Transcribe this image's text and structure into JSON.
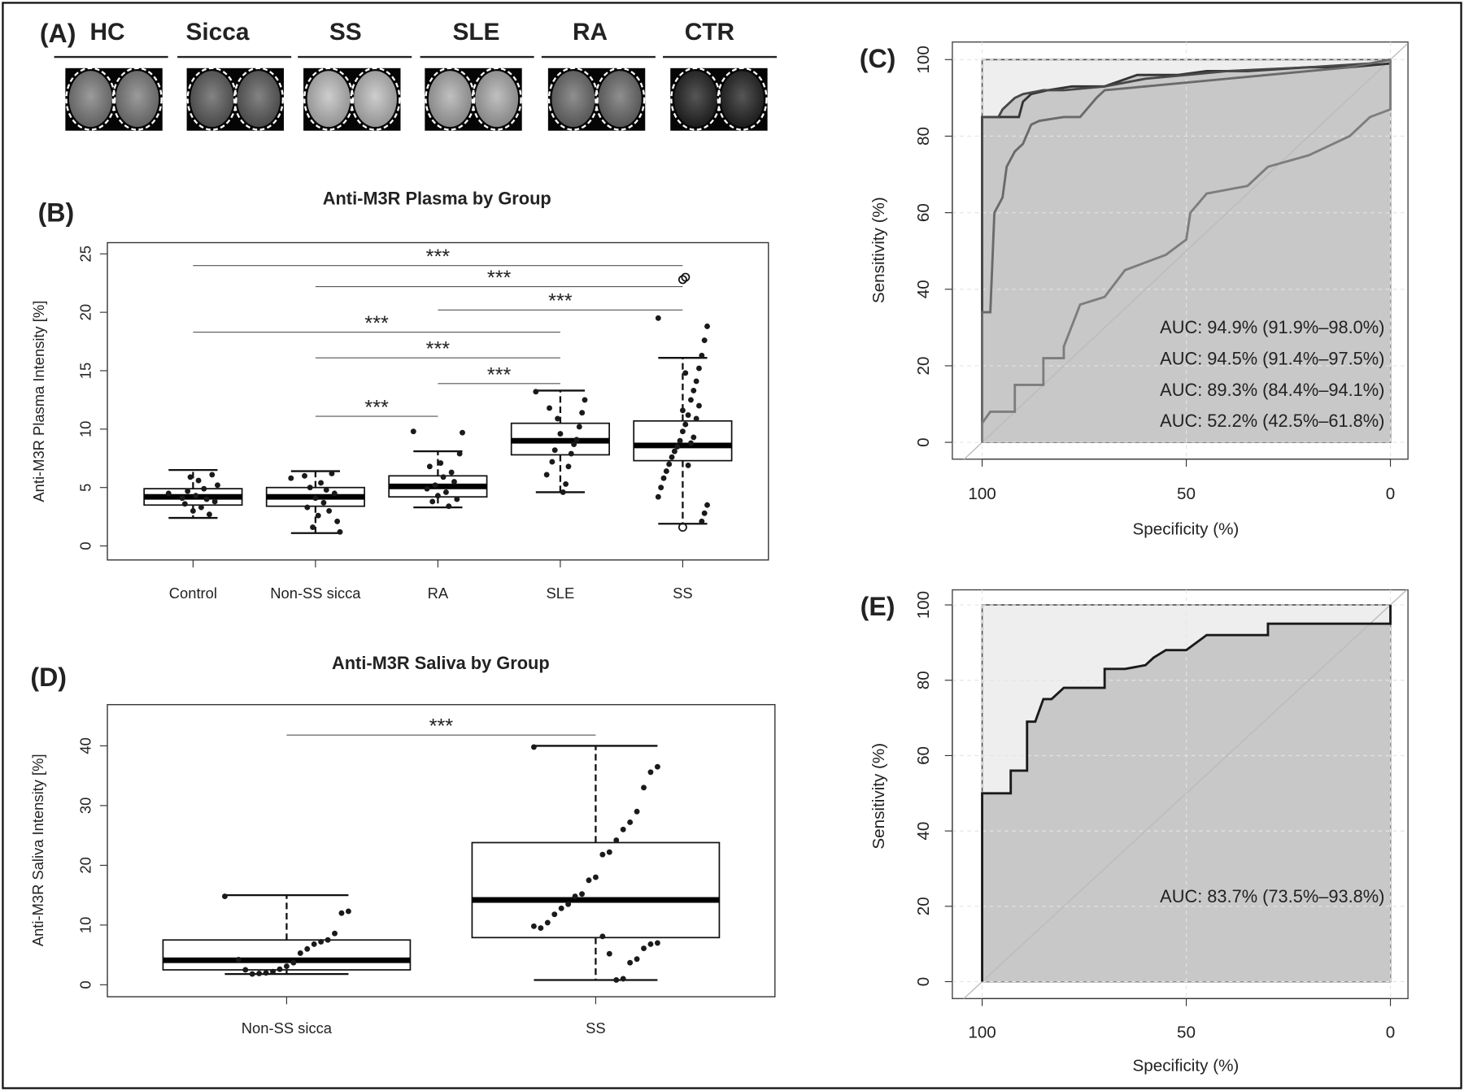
{
  "panel_a": {
    "panel": "(A)",
    "groups": [
      "HC",
      "Sicca",
      "SS",
      "SLE",
      "RA",
      "CTR"
    ]
  },
  "chart_data": [
    {
      "type": "box",
      "panel": "(B)",
      "title": "Anti-M3R Plasma by Group",
      "ylabel": "Anti-M3R Plasma Intensity [%]",
      "categories": [
        "Control",
        "Non-SS sicca",
        "RA",
        "SLE",
        "SS"
      ],
      "ylim": [
        -1.2,
        25.96
      ],
      "yticks": [
        0,
        5,
        10,
        15,
        20,
        25
      ],
      "color": "#1a1a1a",
      "boxes": [
        {
          "low": 2.4,
          "q1": 3.5,
          "median": 4.2,
          "q3": 4.9,
          "high": 6.5,
          "outliers": [],
          "points": [
            4.5,
            5.2,
            3.8,
            6.1,
            2.7,
            4.0,
            4.9,
            3.3,
            5.6,
            4.3,
            3.0,
            5.9,
            4.7,
            3.6,
            4.1
          ]
        },
        {
          "low": 1.1,
          "q1": 3.4,
          "median": 4.2,
          "q3": 5.0,
          "high": 6.4,
          "outliers": [],
          "points": [
            5.8,
            1.2,
            2.1,
            4.5,
            6.2,
            3.0,
            4.8,
            3.7,
            5.4,
            2.6,
            4.1,
            1.6,
            5.0,
            3.3,
            6.0
          ]
        },
        {
          "low": 3.3,
          "q1": 4.2,
          "median": 5.1,
          "q3": 6.0,
          "high": 8.1,
          "outliers": [],
          "points": [
            9.8,
            9.7,
            7.9,
            4.0,
            5.5,
            6.3,
            3.4,
            4.6,
            5.9,
            7.1,
            4.3,
            5.2,
            3.8,
            6.8,
            4.9
          ]
        },
        {
          "low": 4.6,
          "q1": 7.8,
          "median": 9.0,
          "q3": 10.5,
          "high": 13.3,
          "outliers": [],
          "points": [
            13.2,
            12.5,
            11.4,
            10.2,
            9.1,
            8.7,
            7.9,
            6.8,
            5.3,
            4.6,
            9.6,
            10.9,
            8.2,
            7.2,
            11.8,
            6.1
          ]
        },
        {
          "low": 1.9,
          "q1": 7.3,
          "median": 8.6,
          "q3": 10.7,
          "high": 16.1,
          "outliers": [
            22.8,
            23.0,
            1.6
          ],
          "points": [
            19.5,
            18.8,
            17.6,
            16.3,
            15.2,
            14.1,
            13.3,
            12.5,
            11.2,
            10.4,
            9.8,
            9.0,
            8.5,
            8.1,
            7.6,
            7.0,
            6.4,
            5.8,
            5.0,
            4.2,
            3.5,
            2.8,
            2.1,
            12.0,
            10.9,
            9.3,
            8.8,
            6.9,
            14.8,
            11.6
          ]
        }
      ],
      "significance": [
        {
          "from": "Control",
          "to": "SS",
          "y": 24.0,
          "label": "***"
        },
        {
          "from": "Non-SS sicca",
          "to": "SS",
          "y": 22.2,
          "label": "***"
        },
        {
          "from": "RA",
          "to": "SS",
          "y": 20.2,
          "label": "***"
        },
        {
          "from": "Control",
          "to": "SLE",
          "y": 18.3,
          "label": "***"
        },
        {
          "from": "Non-SS sicca",
          "to": "SLE",
          "y": 16.1,
          "label": "***"
        },
        {
          "from": "RA",
          "to": "SLE",
          "y": 13.9,
          "label": "***"
        },
        {
          "from": "Non-SS sicca",
          "to": "RA",
          "y": 11.1,
          "label": "***"
        }
      ]
    },
    {
      "type": "box",
      "panel": "(D)",
      "title": "Anti-M3R Saliva by Group",
      "ylabel": "Anti-M3R Saliva Intensity [%]",
      "categories": [
        "Non-SS sicca",
        "SS"
      ],
      "ylim": [
        -2.0,
        46.9
      ],
      "yticks": [
        0,
        10,
        20,
        30,
        40
      ],
      "color": "#1a1a1a",
      "boxes": [
        {
          "low": 1.8,
          "q1": 2.5,
          "median": 4.1,
          "q3": 7.5,
          "high": 15.0,
          "outliers": [],
          "points": [
            14.8,
            12.3,
            12.0,
            8.6,
            7.5,
            7.2,
            6.8,
            6.0,
            5.3,
            3.7,
            3.1,
            2.6,
            2.2,
            2.0,
            1.9,
            1.8,
            2.5,
            4.2
          ]
        },
        {
          "low": 0.8,
          "q1": 7.9,
          "median": 14.2,
          "q3": 23.8,
          "high": 40.0,
          "outliers": [],
          "points": [
            39.8,
            36.5,
            35.6,
            33.0,
            29.0,
            27.2,
            26.0,
            24.2,
            22.2,
            21.8,
            18.0,
            17.5,
            15.2,
            14.8,
            13.5,
            12.8,
            11.8,
            10.4,
            9.5,
            9.8,
            7.0,
            6.8,
            6.1,
            4.3,
            3.7,
            1.0,
            0.8,
            5.2,
            8.1
          ]
        }
      ],
      "significance": [
        {
          "from": "Non-SS sicca",
          "to": "SS",
          "y": 41.8,
          "label": "***"
        }
      ]
    },
    {
      "type": "roc",
      "panel": "(C)",
      "xlabel": "Specificity (%)",
      "ylabel": "Sensitivity (%)",
      "xlim": [
        107.3,
        -4.3
      ],
      "ylim": [
        -4.4,
        104.6
      ],
      "xticks": [
        100,
        50,
        0
      ],
      "yticks": [
        0,
        20,
        40,
        60,
        80,
        100
      ],
      "grid": true,
      "area_color": "#c8c8c8",
      "background": "#eeeeee",
      "series": [
        {
          "name": "AUC: 94.9% (91.9%–98.0%)",
          "color": "#333333",
          "x": [
            100,
            100,
            91,
            90,
            88,
            84,
            78,
            70,
            62,
            52,
            45,
            35,
            20,
            10,
            0,
            0
          ],
          "values": [
            0,
            85,
            85,
            89,
            91,
            92,
            93,
            93,
            96,
            96,
            97,
            97,
            98,
            98,
            99,
            100
          ]
        },
        {
          "name": "AUC: 94.5% (91.4%–97.5%)",
          "color": "#484848",
          "x": [
            100,
            100,
            96,
            95,
            92,
            90,
            85,
            80,
            70,
            60,
            50,
            40,
            20,
            5,
            0
          ],
          "values": [
            0,
            85,
            85,
            87,
            90,
            91,
            92,
            92,
            93,
            95,
            96,
            97,
            98,
            99,
            100
          ]
        },
        {
          "name": "AUC: 89.3% (84.4%–94.1%)",
          "color": "#6a6a6a",
          "x": [
            100,
            100,
            98,
            97,
            95,
            94,
            92,
            90,
            88,
            86,
            80,
            76,
            72,
            70,
            60,
            40,
            20,
            10,
            0
          ],
          "values": [
            0,
            34,
            34,
            60,
            64,
            72,
            76,
            78,
            83,
            84,
            85,
            85,
            90,
            92,
            93,
            95,
            97,
            98,
            100
          ]
        },
        {
          "name": "AUC: 52.2% (42.5%–61.8%)",
          "color": "#7d7d7d",
          "x": [
            100,
            100,
            98,
            92,
            92,
            85,
            85,
            80,
            80,
            76,
            70,
            65,
            60,
            55,
            50,
            49,
            45,
            40,
            35,
            30,
            20,
            10,
            5,
            0,
            0
          ],
          "values": [
            0,
            5,
            8,
            8,
            15,
            15,
            22,
            22,
            25,
            36,
            38,
            45,
            47,
            49,
            53,
            60,
            65,
            66,
            67,
            72,
            75,
            80,
            85,
            87,
            100
          ]
        }
      ]
    },
    {
      "type": "roc",
      "panel": "(E)",
      "xlabel": "Specificity (%)",
      "ylabel": "Sensitivity (%)",
      "xlim": [
        107.3,
        -4.3
      ],
      "ylim": [
        -4.5,
        104.0
      ],
      "xticks": [
        100,
        50,
        0
      ],
      "yticks": [
        0,
        20,
        40,
        60,
        80,
        100
      ],
      "grid": true,
      "area_color": "#c8c8c8",
      "background": "#eeeeee",
      "series": [
        {
          "name": "AUC: 83.7% (73.5%–93.8%)",
          "color": "#1a1a1a",
          "x": [
            100,
            100,
            93,
            93,
            89,
            89,
            87,
            85,
            83,
            80,
            70,
            70,
            65,
            60,
            58,
            55,
            50,
            45,
            30,
            30,
            20,
            10,
            0,
            0
          ],
          "values": [
            0,
            50,
            50,
            56,
            56,
            69,
            69,
            75,
            75,
            78,
            78,
            83,
            83,
            84,
            86,
            88,
            88,
            92,
            92,
            95,
            95,
            95,
            95,
            100
          ]
        }
      ]
    }
  ]
}
